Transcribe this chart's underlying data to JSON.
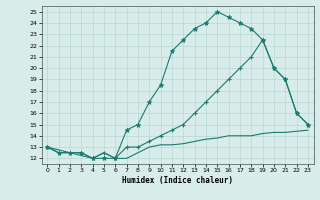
{
  "title": "",
  "xlabel": "Humidex (Indice chaleur)",
  "bg_color": "#d8ecea",
  "line_color": "#1a7a6e",
  "grid_color": "#b8d8d4",
  "xlim": [
    -0.5,
    23.5
  ],
  "ylim": [
    11.5,
    25.5
  ],
  "xticks": [
    0,
    1,
    2,
    3,
    4,
    5,
    6,
    7,
    8,
    9,
    10,
    11,
    12,
    13,
    14,
    15,
    16,
    17,
    18,
    19,
    20,
    21,
    22,
    23
  ],
  "yticks": [
    12,
    13,
    14,
    15,
    16,
    17,
    18,
    19,
    20,
    21,
    22,
    23,
    24,
    25
  ],
  "line1_x": [
    0,
    1,
    2,
    3,
    4,
    5,
    6,
    7,
    8,
    9,
    10,
    11,
    12,
    13,
    14,
    15,
    16,
    17,
    18,
    19,
    20,
    21,
    22,
    23
  ],
  "line1_y": [
    13,
    12.5,
    12.5,
    12.5,
    12,
    12,
    12,
    14.5,
    15,
    17,
    18.5,
    21.5,
    22.5,
    23.5,
    24,
    25,
    24.5,
    24,
    23.5,
    22.5,
    20,
    19,
    16,
    15
  ],
  "line2_x": [
    0,
    4,
    5,
    6,
    7,
    8,
    9,
    10,
    11,
    12,
    13,
    14,
    15,
    16,
    17,
    18,
    19,
    20,
    21,
    22,
    23
  ],
  "line2_y": [
    13,
    12,
    12.5,
    12,
    13,
    13,
    13.5,
    14,
    14.5,
    15,
    16,
    17,
    18,
    19,
    20,
    21,
    22.5,
    20,
    19,
    16,
    15
  ],
  "line3_x": [
    0,
    1,
    2,
    3,
    4,
    5,
    6,
    7,
    8,
    9,
    10,
    11,
    12,
    13,
    14,
    15,
    16,
    17,
    18,
    19,
    20,
    21,
    22,
    23
  ],
  "line3_y": [
    13,
    12.5,
    12.5,
    12.5,
    12,
    12.5,
    12,
    12,
    12.5,
    13,
    13.2,
    13.2,
    13.3,
    13.5,
    13.7,
    13.8,
    14,
    14,
    14,
    14.2,
    14.3,
    14.3,
    14.4,
    14.5
  ]
}
